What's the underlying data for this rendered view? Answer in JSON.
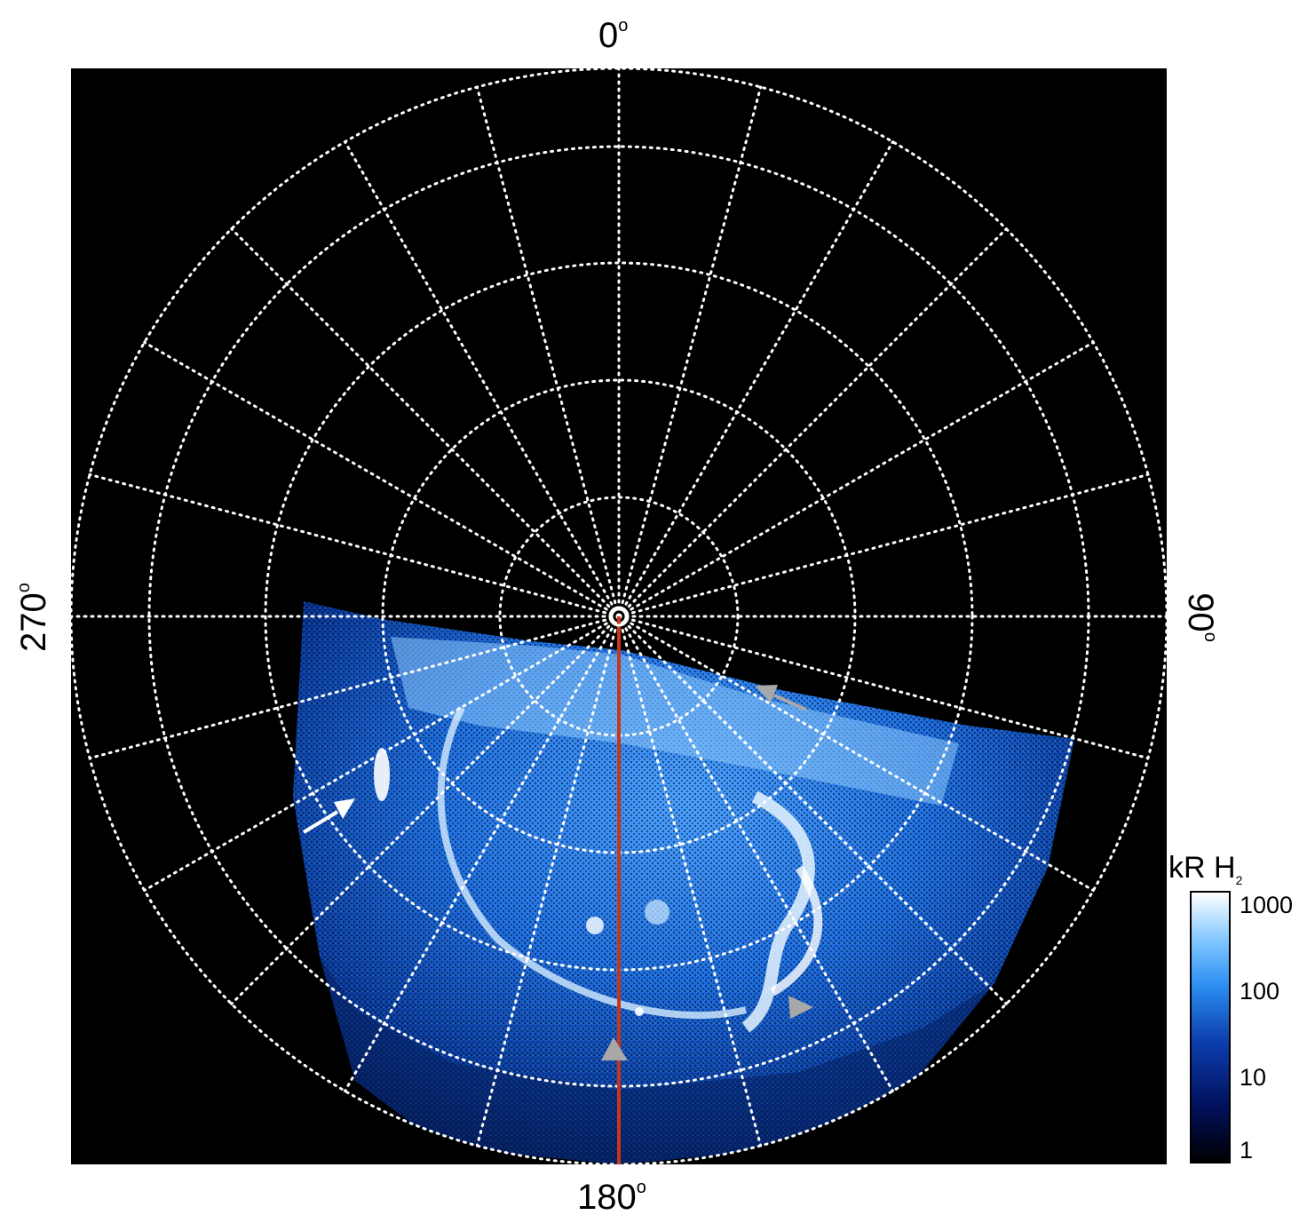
{
  "figure": {
    "axis_labels": {
      "top": "0",
      "bottom": "180",
      "left": "270",
      "right": "90",
      "degree_symbol": "o"
    },
    "colorbar": {
      "title_main": "kR H",
      "title_sub": "2",
      "ticks": [
        "1000",
        "100",
        "10",
        "1"
      ]
    },
    "colors": {
      "background": "#000000",
      "grid": "#ffffff",
      "meridian_line": "#c8361a",
      "arrow_white": "#ffffff",
      "arrow_gray": "#a8a8a8",
      "aurora_blue": "#1f6fe0",
      "aurora_bright": "#cfe8ff"
    }
  }
}
